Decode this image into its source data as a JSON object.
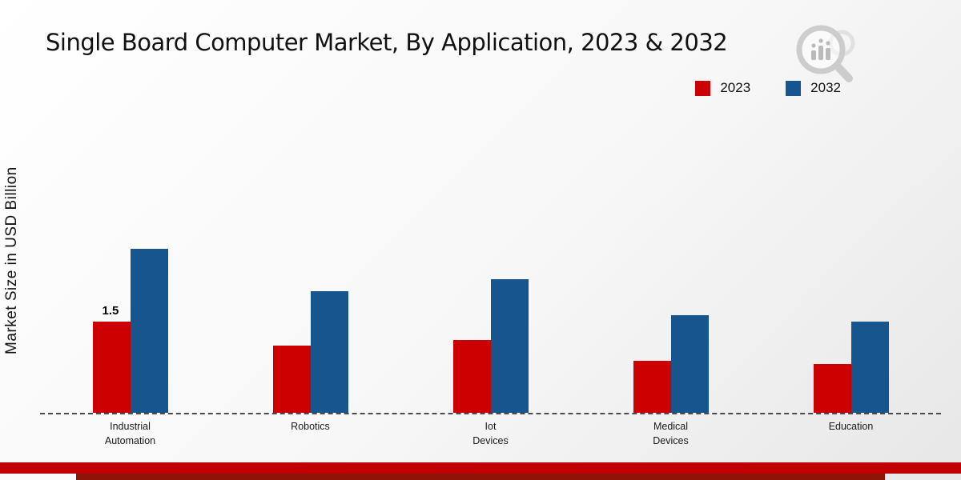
{
  "title": "Single Board Computer Market, By Application, 2023 & 2032",
  "ylabel": "Market Size in USD Billion",
  "chart_data": {
    "type": "bar",
    "title": "Single Board Computer Market, By Application, 2023 & 2032",
    "xlabel": "",
    "ylabel": "Market Size in USD Billion",
    "categories": [
      [
        "Industrial",
        "Automation"
      ],
      [
        "Robotics"
      ],
      [
        "Iot",
        "Devices"
      ],
      [
        "Medical",
        "Devices"
      ],
      [
        "Education"
      ]
    ],
    "series": [
      {
        "name": "2023",
        "color": "#cc0000",
        "values": [
          1.5,
          1.1,
          1.2,
          0.85,
          0.8
        ]
      },
      {
        "name": "2032",
        "color": "#17558f",
        "values": [
          2.7,
          2.0,
          2.2,
          1.6,
          1.5
        ]
      }
    ],
    "annotations": [
      {
        "series_index": 0,
        "category_index": 0,
        "text": "1.5"
      }
    ],
    "ylim": [
      0,
      5
    ],
    "grid": false,
    "legend_position": "top-right",
    "baseline_style": "dashed"
  },
  "footer": {
    "band_color": "#c00000",
    "accent_color": "#8e1407"
  },
  "logo": {
    "name": "magnifier-bar-chart-logo",
    "color": "#c6c6c6"
  }
}
